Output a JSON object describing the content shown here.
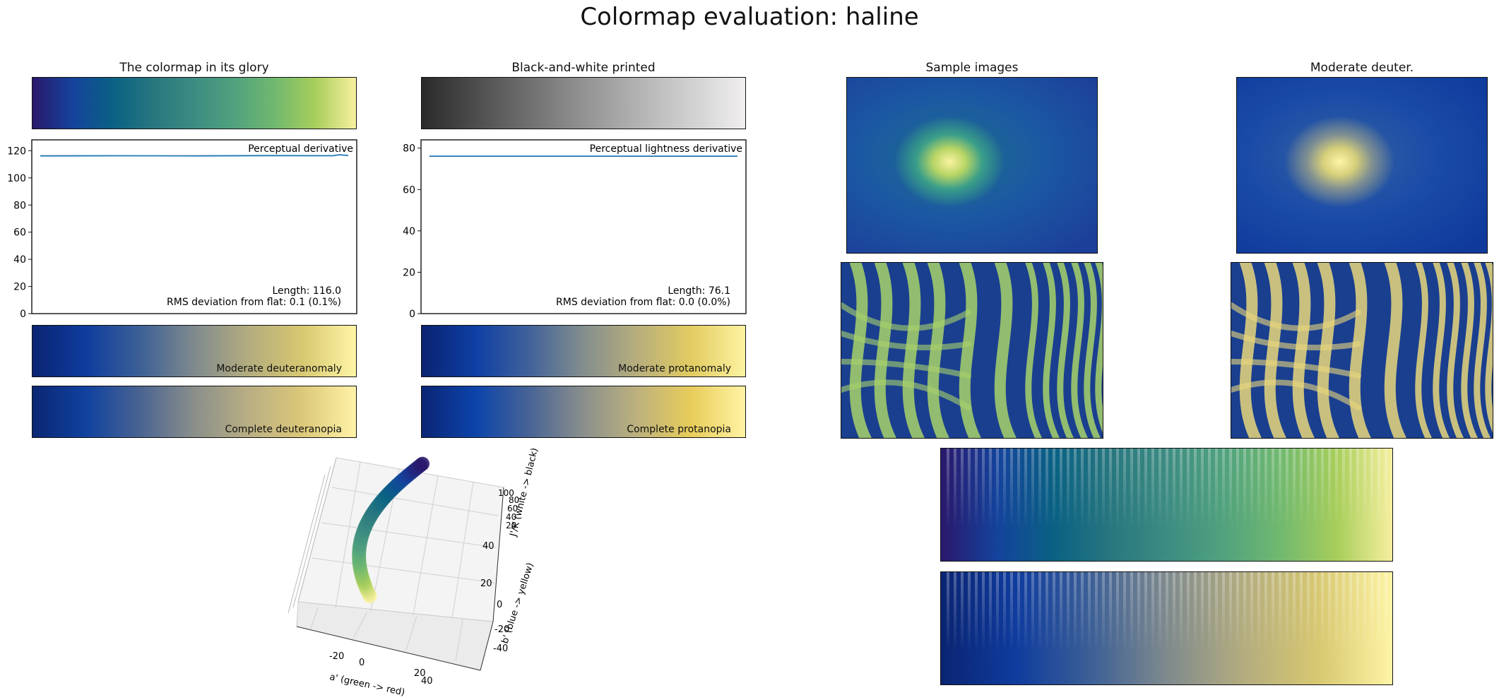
{
  "title": "Colormap evaluation: haline",
  "colors": {
    "haline": [
      "#2a186c",
      "#14439c",
      "#0a6183",
      "#28777f",
      "#3d8c82",
      "#51a27e",
      "#71b96f",
      "#a8ce5b",
      "#f8f0a0"
    ],
    "gray": [
      "#2a2a2a",
      "#5f5f5f",
      "#929292",
      "#c2c2c2",
      "#f0eeee"
    ],
    "deuter_mod": [
      "#0a2472",
      "#0f3c9e",
      "#3d6096",
      "#7f8a8d",
      "#b3ac7f",
      "#d7c871",
      "#fff5a6"
    ],
    "deuter_full": [
      "#0b2673",
      "#10429f",
      "#4a6492",
      "#8a8f8a",
      "#b9ae84",
      "#dcc878",
      "#fff3a8"
    ],
    "protan_mod": [
      "#0a2370",
      "#0e3fa4",
      "#41629a",
      "#838e8d",
      "#b7ae7c",
      "#e2cc61",
      "#fdf3a2"
    ],
    "protan_full": [
      "#0b2574",
      "#0c44ab",
      "#486496",
      "#8a8f8c",
      "#bdb17d",
      "#e8cd5a",
      "#fff3a4"
    ],
    "line": "#1f77b4"
  },
  "panels": {
    "glory": "The colormap in its glory",
    "bw": "Black-and-white printed",
    "samples": "Sample images",
    "deuter": "Moderate deuter."
  },
  "labels": {
    "deuter_mod": "Moderate deuteranomaly",
    "deuter_full": "Complete deuteranopia",
    "protan_mod": "Moderate protanomaly",
    "protan_full": "Complete protanopia"
  },
  "chart_data": [
    {
      "type": "line",
      "title": "Perceptual derivative",
      "ylim": [
        0,
        128
      ],
      "yticks": [
        0,
        20,
        40,
        60,
        80,
        100,
        120
      ],
      "x": [
        0,
        0.25,
        0.5,
        0.75,
        0.95,
        0.97,
        1.0
      ],
      "values": [
        116.2,
        116.3,
        116.2,
        116.4,
        116.3,
        117.0,
        116.5
      ],
      "annotation_1": "Length: 116.0",
      "annotation_2": "RMS deviation from flat: 0.1 (0.1%)"
    },
    {
      "type": "line",
      "title": "Perceptual lightness derivative",
      "ylim": [
        0,
        84
      ],
      "yticks": [
        0,
        20,
        40,
        60,
        80
      ],
      "x": [
        0,
        1
      ],
      "values": [
        76.1,
        76.1
      ],
      "annotation_1": "Length: 76.1",
      "annotation_2": "RMS deviation from flat: 0.0 (0.0%)"
    },
    {
      "type": "scatter3d",
      "xlabel": "a' (green -> red)",
      "ylabel": "b' (blue -> yellow)",
      "zlabel": "J'/K (white -> black)",
      "xticks": [
        "-20",
        "0",
        "20",
        "40"
      ],
      "yticks": [
        "-40",
        "-20",
        "0",
        "20",
        "40"
      ],
      "zticks": [
        "20",
        "40",
        "60",
        "80",
        "100"
      ]
    }
  ]
}
